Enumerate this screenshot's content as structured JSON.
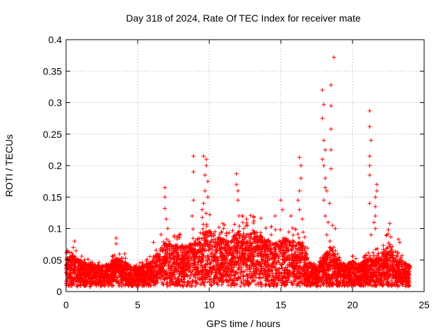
{
  "chart_data": {
    "type": "scatter",
    "title": "Day 318 of 2024, Rate Of TEC Index for receiver mate",
    "xlabel": "GPS time / hours",
    "ylabel": "ROTI / TECUs",
    "xlim": [
      0,
      25
    ],
    "ylim": [
      0,
      0.4
    ],
    "xticks": [
      0,
      5,
      10,
      15,
      20,
      25
    ],
    "yticks": [
      0,
      0.05,
      0.1,
      0.15,
      0.2,
      0.25,
      0.3,
      0.35,
      0.4
    ],
    "xtick_labels": [
      "0",
      "5",
      "10",
      "15",
      "20",
      "25"
    ],
    "ytick_labels": [
      "0",
      "0.05",
      "0.1",
      "0.15",
      "0.2",
      "0.25",
      "0.3",
      "0.35",
      "0.4"
    ],
    "grid": true,
    "marker": "+",
    "color": "#ff0000",
    "envelope": {
      "description": "approximate typical upper range of dense ROTI values per hour",
      "x": [
        0,
        0.5,
        1,
        2,
        3,
        3.5,
        4,
        5,
        6,
        6.5,
        7,
        8,
        9,
        9.5,
        10,
        10.5,
        11,
        11.5,
        12,
        12.5,
        13,
        14,
        14.5,
        15,
        15.5,
        16,
        16.5,
        17,
        17.5,
        18,
        18.5,
        19,
        19.5,
        20,
        20.5,
        21,
        21.5,
        22,
        22.5,
        23,
        23.5,
        24
      ],
      "y": [
        0.045,
        0.05,
        0.04,
        0.035,
        0.035,
        0.045,
        0.04,
        0.03,
        0.04,
        0.06,
        0.07,
        0.065,
        0.07,
        0.085,
        0.09,
        0.08,
        0.075,
        0.07,
        0.09,
        0.08,
        0.09,
        0.075,
        0.07,
        0.08,
        0.075,
        0.07,
        0.07,
        0.04,
        0.03,
        0.05,
        0.065,
        0.04,
        0.035,
        0.04,
        0.035,
        0.045,
        0.05,
        0.045,
        0.07,
        0.045,
        0.04,
        0.035
      ]
    },
    "outliers": [
      {
        "x": 0.1,
        "y": 0.065
      },
      {
        "x": 0.5,
        "y": 0.07
      },
      {
        "x": 0.6,
        "y": 0.08
      },
      {
        "x": 3.5,
        "y": 0.085
      },
      {
        "x": 3.5,
        "y": 0.076
      },
      {
        "x": 4.1,
        "y": 0.06
      },
      {
        "x": 6.1,
        "y": 0.078
      },
      {
        "x": 6.9,
        "y": 0.165
      },
      {
        "x": 6.9,
        "y": 0.15
      },
      {
        "x": 6.9,
        "y": 0.132
      },
      {
        "x": 7.0,
        "y": 0.115
      },
      {
        "x": 7.1,
        "y": 0.1
      },
      {
        "x": 8.9,
        "y": 0.215
      },
      {
        "x": 8.9,
        "y": 0.19
      },
      {
        "x": 8.9,
        "y": 0.145
      },
      {
        "x": 8.8,
        "y": 0.12
      },
      {
        "x": 9.6,
        "y": 0.215
      },
      {
        "x": 9.8,
        "y": 0.21
      },
      {
        "x": 9.8,
        "y": 0.2
      },
      {
        "x": 9.7,
        "y": 0.185
      },
      {
        "x": 9.9,
        "y": 0.175
      },
      {
        "x": 9.7,
        "y": 0.16
      },
      {
        "x": 9.9,
        "y": 0.15
      },
      {
        "x": 9.6,
        "y": 0.14
      },
      {
        "x": 9.5,
        "y": 0.13
      },
      {
        "x": 11.0,
        "y": 0.1
      },
      {
        "x": 11.9,
        "y": 0.187
      },
      {
        "x": 11.9,
        "y": 0.17
      },
      {
        "x": 12.0,
        "y": 0.16
      },
      {
        "x": 12.0,
        "y": 0.145
      },
      {
        "x": 12.3,
        "y": 0.12
      },
      {
        "x": 12.6,
        "y": 0.115
      },
      {
        "x": 13.1,
        "y": 0.118
      },
      {
        "x": 14.6,
        "y": 0.12
      },
      {
        "x": 15.0,
        "y": 0.145
      },
      {
        "x": 15.1,
        "y": 0.13
      },
      {
        "x": 15.7,
        "y": 0.12
      },
      {
        "x": 16.3,
        "y": 0.213
      },
      {
        "x": 16.4,
        "y": 0.2
      },
      {
        "x": 16.4,
        "y": 0.18
      },
      {
        "x": 16.3,
        "y": 0.16
      },
      {
        "x": 16.2,
        "y": 0.145
      },
      {
        "x": 16.3,
        "y": 0.13
      },
      {
        "x": 16.5,
        "y": 0.115
      },
      {
        "x": 18.7,
        "y": 0.372
      },
      {
        "x": 18.5,
        "y": 0.328
      },
      {
        "x": 17.9,
        "y": 0.32
      },
      {
        "x": 18.0,
        "y": 0.297
      },
      {
        "x": 18.5,
        "y": 0.295
      },
      {
        "x": 17.9,
        "y": 0.275
      },
      {
        "x": 18.5,
        "y": 0.258
      },
      {
        "x": 18.0,
        "y": 0.24
      },
      {
        "x": 18.1,
        "y": 0.225
      },
      {
        "x": 18.5,
        "y": 0.225
      },
      {
        "x": 17.9,
        "y": 0.21
      },
      {
        "x": 18.0,
        "y": 0.2
      },
      {
        "x": 18.5,
        "y": 0.195
      },
      {
        "x": 18.1,
        "y": 0.18
      },
      {
        "x": 18.1,
        "y": 0.165
      },
      {
        "x": 18.2,
        "y": 0.16
      },
      {
        "x": 18.0,
        "y": 0.145
      },
      {
        "x": 18.4,
        "y": 0.14
      },
      {
        "x": 18.1,
        "y": 0.12
      },
      {
        "x": 18.3,
        "y": 0.11
      },
      {
        "x": 18.6,
        "y": 0.105
      },
      {
        "x": 18.8,
        "y": 0.1
      },
      {
        "x": 18.2,
        "y": 0.09
      },
      {
        "x": 21.2,
        "y": 0.287
      },
      {
        "x": 21.2,
        "y": 0.262
      },
      {
        "x": 21.3,
        "y": 0.24
      },
      {
        "x": 21.2,
        "y": 0.215
      },
      {
        "x": 21.2,
        "y": 0.2
      },
      {
        "x": 21.2,
        "y": 0.185
      },
      {
        "x": 21.7,
        "y": 0.17
      },
      {
        "x": 21.7,
        "y": 0.16
      },
      {
        "x": 21.6,
        "y": 0.15
      },
      {
        "x": 21.2,
        "y": 0.14
      },
      {
        "x": 21.6,
        "y": 0.135
      },
      {
        "x": 21.6,
        "y": 0.12
      },
      {
        "x": 21.5,
        "y": 0.11
      },
      {
        "x": 21.6,
        "y": 0.1
      },
      {
        "x": 21.3,
        "y": 0.09
      },
      {
        "x": 22.6,
        "y": 0.108
      },
      {
        "x": 22.5,
        "y": 0.098
      },
      {
        "x": 23.2,
        "y": 0.083
      },
      {
        "x": 23.3,
        "y": 0.078
      }
    ]
  }
}
